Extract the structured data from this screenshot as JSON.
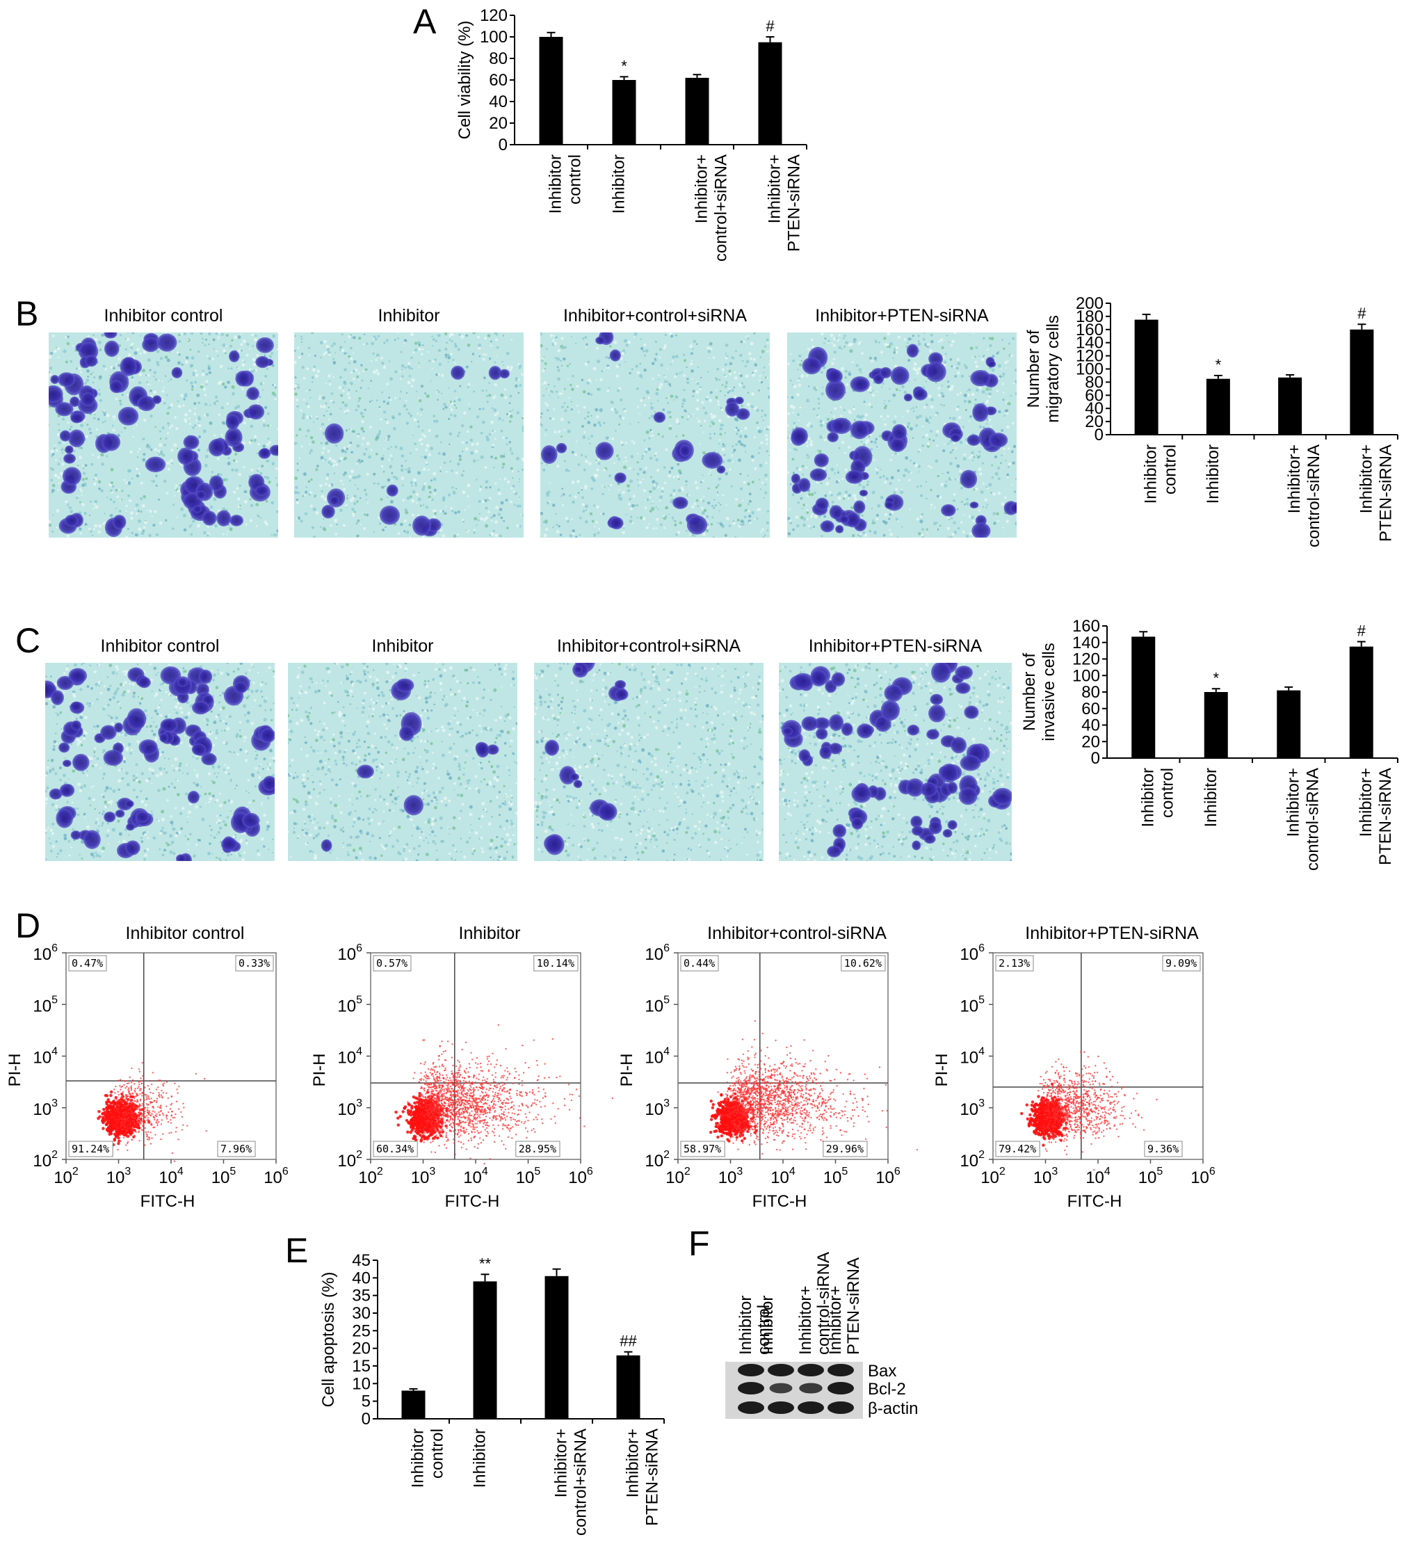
{
  "groups_bar": [
    "Inhibitor control",
    "Inhibitor",
    "Inhibitor+ control+siRNA",
    "Inhibitor+ PTEN-siRNA"
  ],
  "panels": {
    "A": "A",
    "B": "B",
    "C": "C",
    "D": "D",
    "E": "E",
    "F": "F"
  },
  "image_titles_B": [
    "Inhibitor control",
    "Inhibitor",
    "Inhibitor+control+siRNA",
    "Inhibitor+PTEN-siRNA"
  ],
  "image_titles_C": [
    "Inhibitor control",
    "Inhibitor",
    "Inhibitor+control+siRNA",
    "Inhibitor+PTEN-siRNA"
  ],
  "flow_titles": [
    "Inhibitor control",
    "Inhibitor",
    "Inhibitor+control-siRNA",
    "Inhibitor+PTEN-siRNA"
  ],
  "flow_xlabel": "FITC-H",
  "flow_ylabel": "PI-H",
  "flow_quadrants": [
    {
      "ul": "0.47%",
      "ur": "0.33%",
      "ll": "91.24%",
      "lr": "7.96%"
    },
    {
      "ul": "0.57%",
      "ur": "10.14%",
      "ll": "60.34%",
      "lr": "28.95%"
    },
    {
      "ul": "0.44%",
      "ur": "10.62%",
      "ll": "58.97%",
      "lr": "29.96%"
    },
    {
      "ul": "2.13%",
      "ur": "9.09%",
      "ll": "79.42%",
      "lr": "9.36%"
    }
  ],
  "western_blot": {
    "lanes": [
      "Inhibitor control",
      "Inhibitor",
      "Inhibitor+ control-siRNA",
      "Inhibitor+ PTEN-siRNA"
    ],
    "proteins": [
      "Bax",
      "Bcl-2",
      "β-actin"
    ]
  },
  "chart_data": [
    {
      "id": "A",
      "type": "bar",
      "categories": [
        "Inhibitor control",
        "Inhibitor",
        "Inhibitor+ control+siRNA",
        "Inhibitor+ PTEN-siRNA"
      ],
      "values": [
        100,
        60,
        62,
        95
      ],
      "errors": [
        4,
        3,
        3,
        5
      ],
      "annotations": [
        "",
        "*",
        "",
        "#"
      ],
      "ylabel": "Cell viability (%)",
      "ylim": [
        0,
        120
      ],
      "yticks": [
        0,
        20,
        40,
        60,
        80,
        100,
        120
      ]
    },
    {
      "id": "B",
      "type": "bar",
      "categories": [
        "Inhibitor control",
        "Inhibitor",
        "Inhibitor+ control-siRNA",
        "Inhibitor+ PTEN-siRNA"
      ],
      "values": [
        175,
        85,
        87,
        160
      ],
      "errors": [
        8,
        5,
        4,
        8
      ],
      "annotations": [
        "",
        "*",
        "",
        "#"
      ],
      "ylabel": "Number of migratory cells",
      "ylim": [
        0,
        200
      ],
      "yticks": [
        0,
        20,
        40,
        60,
        80,
        100,
        120,
        140,
        160,
        180,
        200
      ]
    },
    {
      "id": "C",
      "type": "bar",
      "categories": [
        "Inhibitor control",
        "Inhibitor",
        "Inhibitor+ control-siRNA",
        "Inhibitor+ PTEN-siRNA"
      ],
      "values": [
        147,
        80,
        82,
        135
      ],
      "errors": [
        6,
        4,
        4,
        6
      ],
      "annotations": [
        "",
        "*",
        "",
        "#"
      ],
      "ylabel": "Number of invasive cells",
      "ylim": [
        0,
        160
      ],
      "yticks": [
        0,
        20,
        40,
        60,
        80,
        100,
        120,
        140,
        160
      ]
    },
    {
      "id": "E",
      "type": "bar",
      "categories": [
        "Inhibitor control",
        "Inhibitor",
        "Inhibitor+ control+siRNA",
        "Inhibitor+ PTEN-siRNA"
      ],
      "values": [
        8,
        39,
        40.5,
        18
      ],
      "errors": [
        0.5,
        2,
        2,
        1
      ],
      "annotations": [
        "",
        "**",
        "",
        "##"
      ],
      "ylabel": "Cell apoptosis (%)",
      "ylim": [
        0,
        45
      ],
      "yticks": [
        0,
        5,
        10,
        15,
        20,
        25,
        30,
        35,
        40,
        45
      ]
    }
  ]
}
